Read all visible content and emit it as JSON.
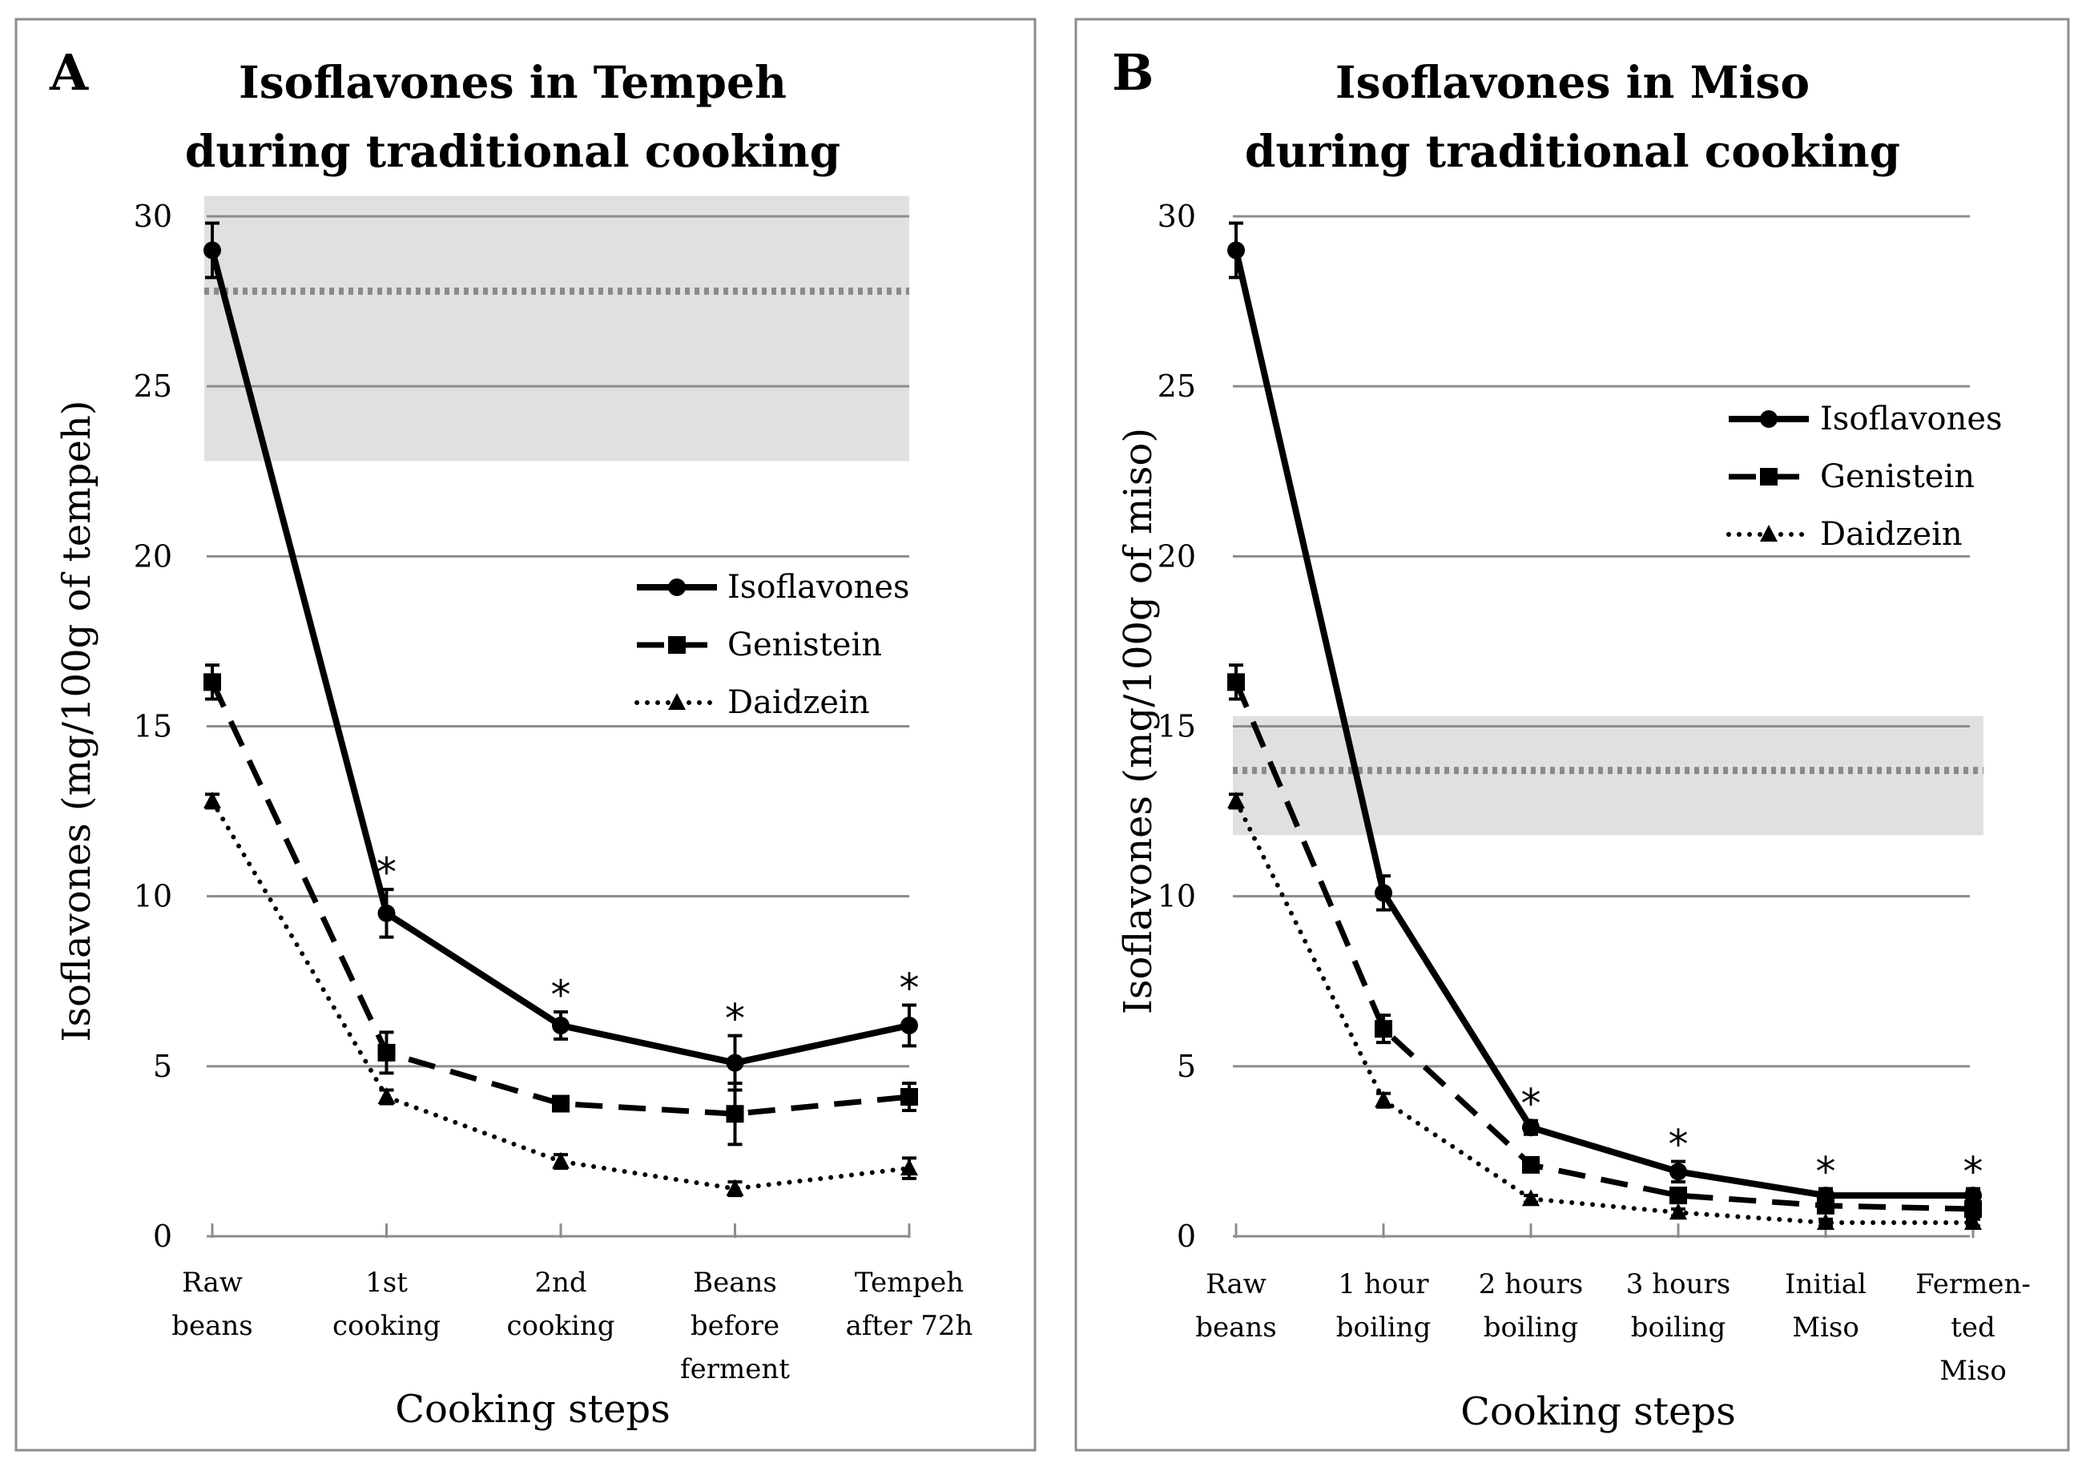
{
  "chart_data": [
    {
      "panel_label": "A",
      "type": "line",
      "title_lines": [
        "Isoflavones in Tempeh",
        "during traditional cooking"
      ],
      "xlabel": "Cooking steps",
      "ylabel": "Isoflavones (mg/100g of tempeh)",
      "ylim": [
        0,
        30
      ],
      "yticks": [
        "0",
        "5",
        "10",
        "15",
        "20",
        "25",
        "30"
      ],
      "grid": true,
      "legend_position": "middle-right",
      "categories": [
        [
          "Raw",
          "beans"
        ],
        [
          "1st",
          "cooking"
        ],
        [
          "2nd",
          "cooking"
        ],
        [
          "Beans",
          "before",
          "ferment"
        ],
        [
          "Tempeh",
          "after 72h"
        ]
      ],
      "reference_band": {
        "low": 22.8,
        "high": 30.6,
        "line": 27.8
      },
      "series": [
        {
          "name": "Isoflavones",
          "style": "solid",
          "marker": "circle",
          "values": [
            29.0,
            9.5,
            6.2,
            5.1,
            6.2
          ],
          "errors": [
            0.8,
            0.7,
            0.4,
            0.8,
            0.6
          ],
          "stars": [
            "",
            "*",
            "*",
            "*",
            "*"
          ]
        },
        {
          "name": "Genistein",
          "style": "dashed",
          "marker": "square",
          "values": [
            16.3,
            5.4,
            3.9,
            3.6,
            4.1
          ],
          "errors": [
            0.5,
            0.6,
            0.2,
            0.9,
            0.4
          ]
        },
        {
          "name": "Daidzein",
          "style": "dotted",
          "marker": "triangle",
          "values": [
            12.8,
            4.1,
            2.2,
            1.4,
            2.0
          ],
          "errors": [
            0.2,
            0.2,
            0.2,
            0.2,
            0.3
          ]
        }
      ]
    },
    {
      "panel_label": "B",
      "type": "line",
      "title_lines": [
        "Isoflavones in Miso",
        "during traditional cooking"
      ],
      "xlabel": "Cooking steps",
      "ylabel": "Isoflavones (mg/100g of miso)",
      "ylim": [
        0,
        30
      ],
      "yticks": [
        "0",
        "5",
        "10",
        "15",
        "20",
        "25",
        "30"
      ],
      "grid": true,
      "legend_position": "top-right",
      "categories": [
        [
          "Raw",
          "beans"
        ],
        [
          "1 hour",
          "boiling"
        ],
        [
          "2 hours",
          "boiling"
        ],
        [
          "3 hours",
          "boiling"
        ],
        [
          "Initial",
          "Miso"
        ],
        [
          "Fermen-",
          "ted",
          "Miso"
        ]
      ],
      "reference_band": {
        "low": 11.8,
        "high": 15.3,
        "line": 13.7
      },
      "series": [
        {
          "name": "Isoflavones",
          "style": "solid",
          "marker": "circle",
          "values": [
            29.0,
            10.1,
            3.2,
            1.9,
            1.2,
            1.2
          ],
          "errors": [
            0.8,
            0.5,
            0.2,
            0.3,
            0.2,
            0.2
          ],
          "stars": [
            "",
            "",
            "*",
            "*",
            "*",
            "*"
          ]
        },
        {
          "name": "Genistein",
          "style": "dashed",
          "marker": "square",
          "values": [
            16.3,
            6.1,
            2.1,
            1.2,
            0.9,
            0.8
          ],
          "errors": [
            0.5,
            0.4,
            0.2,
            0.2,
            0.1,
            0.1
          ]
        },
        {
          "name": "Daidzein",
          "style": "dotted",
          "marker": "triangle",
          "values": [
            12.8,
            4.0,
            1.1,
            0.7,
            0.4,
            0.4
          ],
          "errors": [
            0.2,
            0.2,
            0.1,
            0.1,
            0.1,
            0.1
          ]
        }
      ]
    }
  ]
}
